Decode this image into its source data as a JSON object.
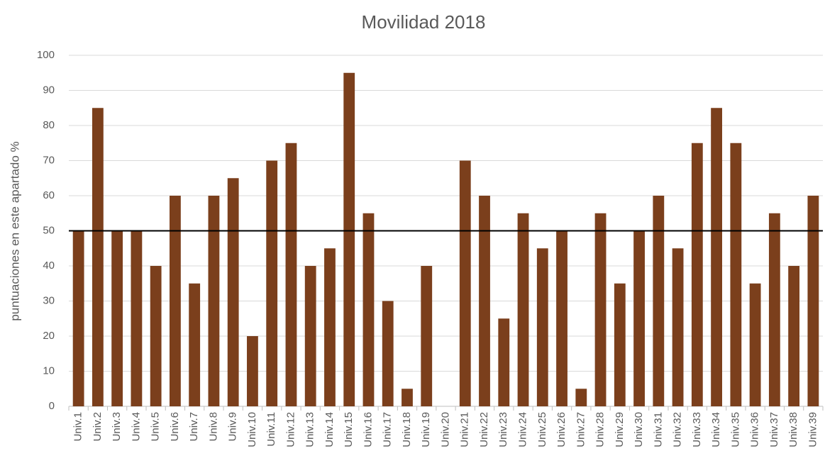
{
  "chart_data": {
    "type": "bar",
    "title": "Movilidad 2018",
    "y_label": "puntuaciones en este apartado %",
    "categories": [
      "Univ.1",
      "Univ.2",
      "Univ.3",
      "Univ.4",
      "Univ.5",
      "Univ.6",
      "Univ.7",
      "Univ.8",
      "Univ.9",
      "Univ.10",
      "Univ.11",
      "Univ.12",
      "Univ.13",
      "Univ.14",
      "Univ.15",
      "Univ.16",
      "Univ.17",
      "Univ.18",
      "Univ.19",
      "Univ.20",
      "Univ.21",
      "Univ.22",
      "Univ.23",
      "Univ.24",
      "Univ.25",
      "Univ.26",
      "Univ.27",
      "Univ.28",
      "Univ.29",
      "Univ.30",
      "Univ.31",
      "Univ.32",
      "Univ.33",
      "Univ.34",
      "Univ.35",
      "Univ.36",
      "Univ.37",
      "Univ.38",
      "Univ.39"
    ],
    "values": [
      50,
      85,
      50,
      50,
      40,
      60,
      35,
      60,
      65,
      20,
      70,
      75,
      40,
      45,
      95,
      55,
      30,
      5,
      40,
      0,
      70,
      60,
      25,
      55,
      45,
      50,
      5,
      55,
      35,
      50,
      60,
      45,
      75,
      85,
      75,
      35,
      55,
      40,
      60
    ],
    "color": "#7b3f1c",
    "reference_line": 50,
    "reference_color": "#000000",
    "ylim": [
      0,
      100
    ],
    "yticks": [
      0,
      10,
      20,
      30,
      40,
      50,
      60,
      70,
      80,
      90,
      100
    ],
    "grid": true
  }
}
